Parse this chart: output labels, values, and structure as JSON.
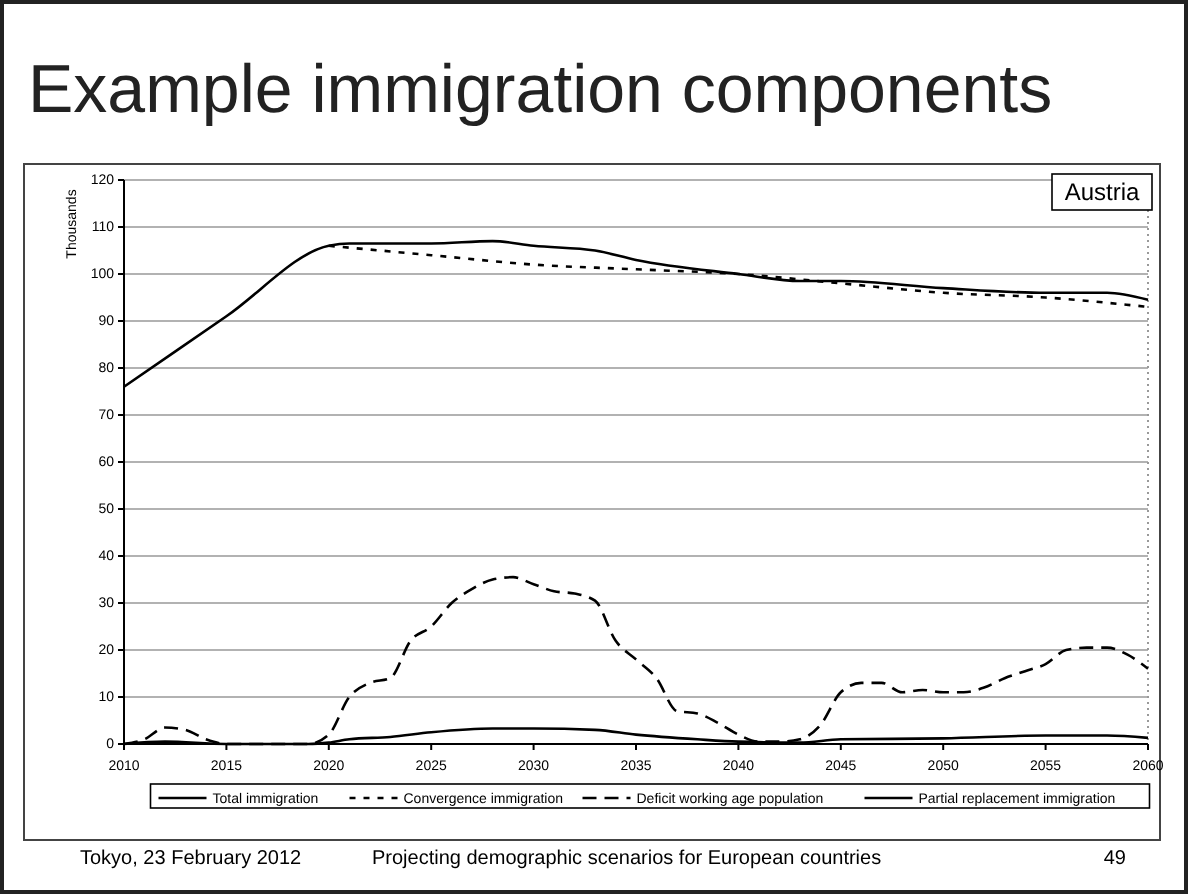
{
  "chart_data": {
    "type": "line",
    "title": "Example immigration components",
    "ylabel": "Thousands",
    "annotations": [
      "Austria",
      "Tokyo, 23 February 2012",
      "Projecting demographic scenarios for European countries",
      "49"
    ],
    "xlim": [
      2010,
      2060
    ],
    "xticks": [
      2010,
      2015,
      2020,
      2025,
      2030,
      2035,
      2040,
      2045,
      2050,
      2055,
      2060
    ],
    "ylim": [
      0,
      120
    ],
    "yticks": [
      0,
      10,
      20,
      30,
      40,
      50,
      60,
      70,
      80,
      90,
      100,
      110,
      120
    ],
    "grid": "y",
    "legend": "bottom",
    "marker": "none",
    "series": [
      {
        "name": "Total immigration",
        "color": "#000000",
        "line_style": "solid",
        "x": [
          2010,
          2015,
          2020,
          2021,
          2025,
          2028,
          2030,
          2033,
          2035,
          2040,
          2043,
          2045,
          2050,
          2055,
          2058,
          2060
        ],
        "values": [
          76,
          91,
          106,
          106.5,
          106.5,
          107,
          106,
          105,
          103,
          100,
          98.5,
          98.5,
          97,
          96,
          96,
          94.5
        ]
      },
      {
        "name": "Convergence immigration",
        "color": "#000000",
        "line_style": "dotted",
        "x": [
          2020,
          2025,
          2030,
          2035,
          2040,
          2045,
          2050,
          2055,
          2060
        ],
        "values": [
          106,
          104,
          102,
          101,
          100,
          98,
          96,
          95,
          93
        ]
      },
      {
        "name": "Deficit working age population",
        "color": "#000000",
        "line_style": "dashed",
        "x": [
          2010,
          2011,
          2012,
          2013,
          2014,
          2015,
          2019,
          2020,
          2021,
          2022,
          2023,
          2024,
          2025,
          2026,
          2027,
          2028,
          2029,
          2030,
          2031,
          2032,
          2033,
          2034,
          2035,
          2036,
          2037,
          2038,
          2039,
          2040,
          2041,
          2042,
          2043,
          2044,
          2045,
          2046,
          2047,
          2048,
          2049,
          2050,
          2051,
          2052,
          2053,
          2054,
          2055,
          2056,
          2057,
          2058,
          2059,
          2060
        ],
        "values": [
          0,
          1,
          3.5,
          3,
          1,
          0,
          0,
          2,
          10,
          13,
          14,
          22,
          25,
          30,
          33,
          35,
          35.5,
          34,
          32.5,
          32,
          30.5,
          22,
          18,
          14,
          7,
          6.5,
          4.5,
          2,
          0.5,
          0.5,
          1,
          4,
          11,
          13,
          13,
          11,
          11.5,
          11,
          11,
          12,
          14,
          15.5,
          17,
          20,
          20.5,
          20.5,
          19,
          16
        ]
      },
      {
        "name": "Partial replacement immigration",
        "color": "#000000",
        "line_style": "solid",
        "x": [
          2010,
          2012,
          2015,
          2019,
          2020,
          2021,
          2023,
          2025,
          2028,
          2030,
          2033,
          2035,
          2038,
          2040,
          2043,
          2045,
          2050,
          2055,
          2058,
          2060
        ],
        "values": [
          0,
          0.5,
          0,
          0,
          0.3,
          1,
          1.5,
          2.5,
          3.3,
          3.3,
          3,
          2,
          1,
          0.5,
          0.3,
          1,
          1.2,
          1.8,
          1.8,
          1.3
        ]
      }
    ]
  }
}
